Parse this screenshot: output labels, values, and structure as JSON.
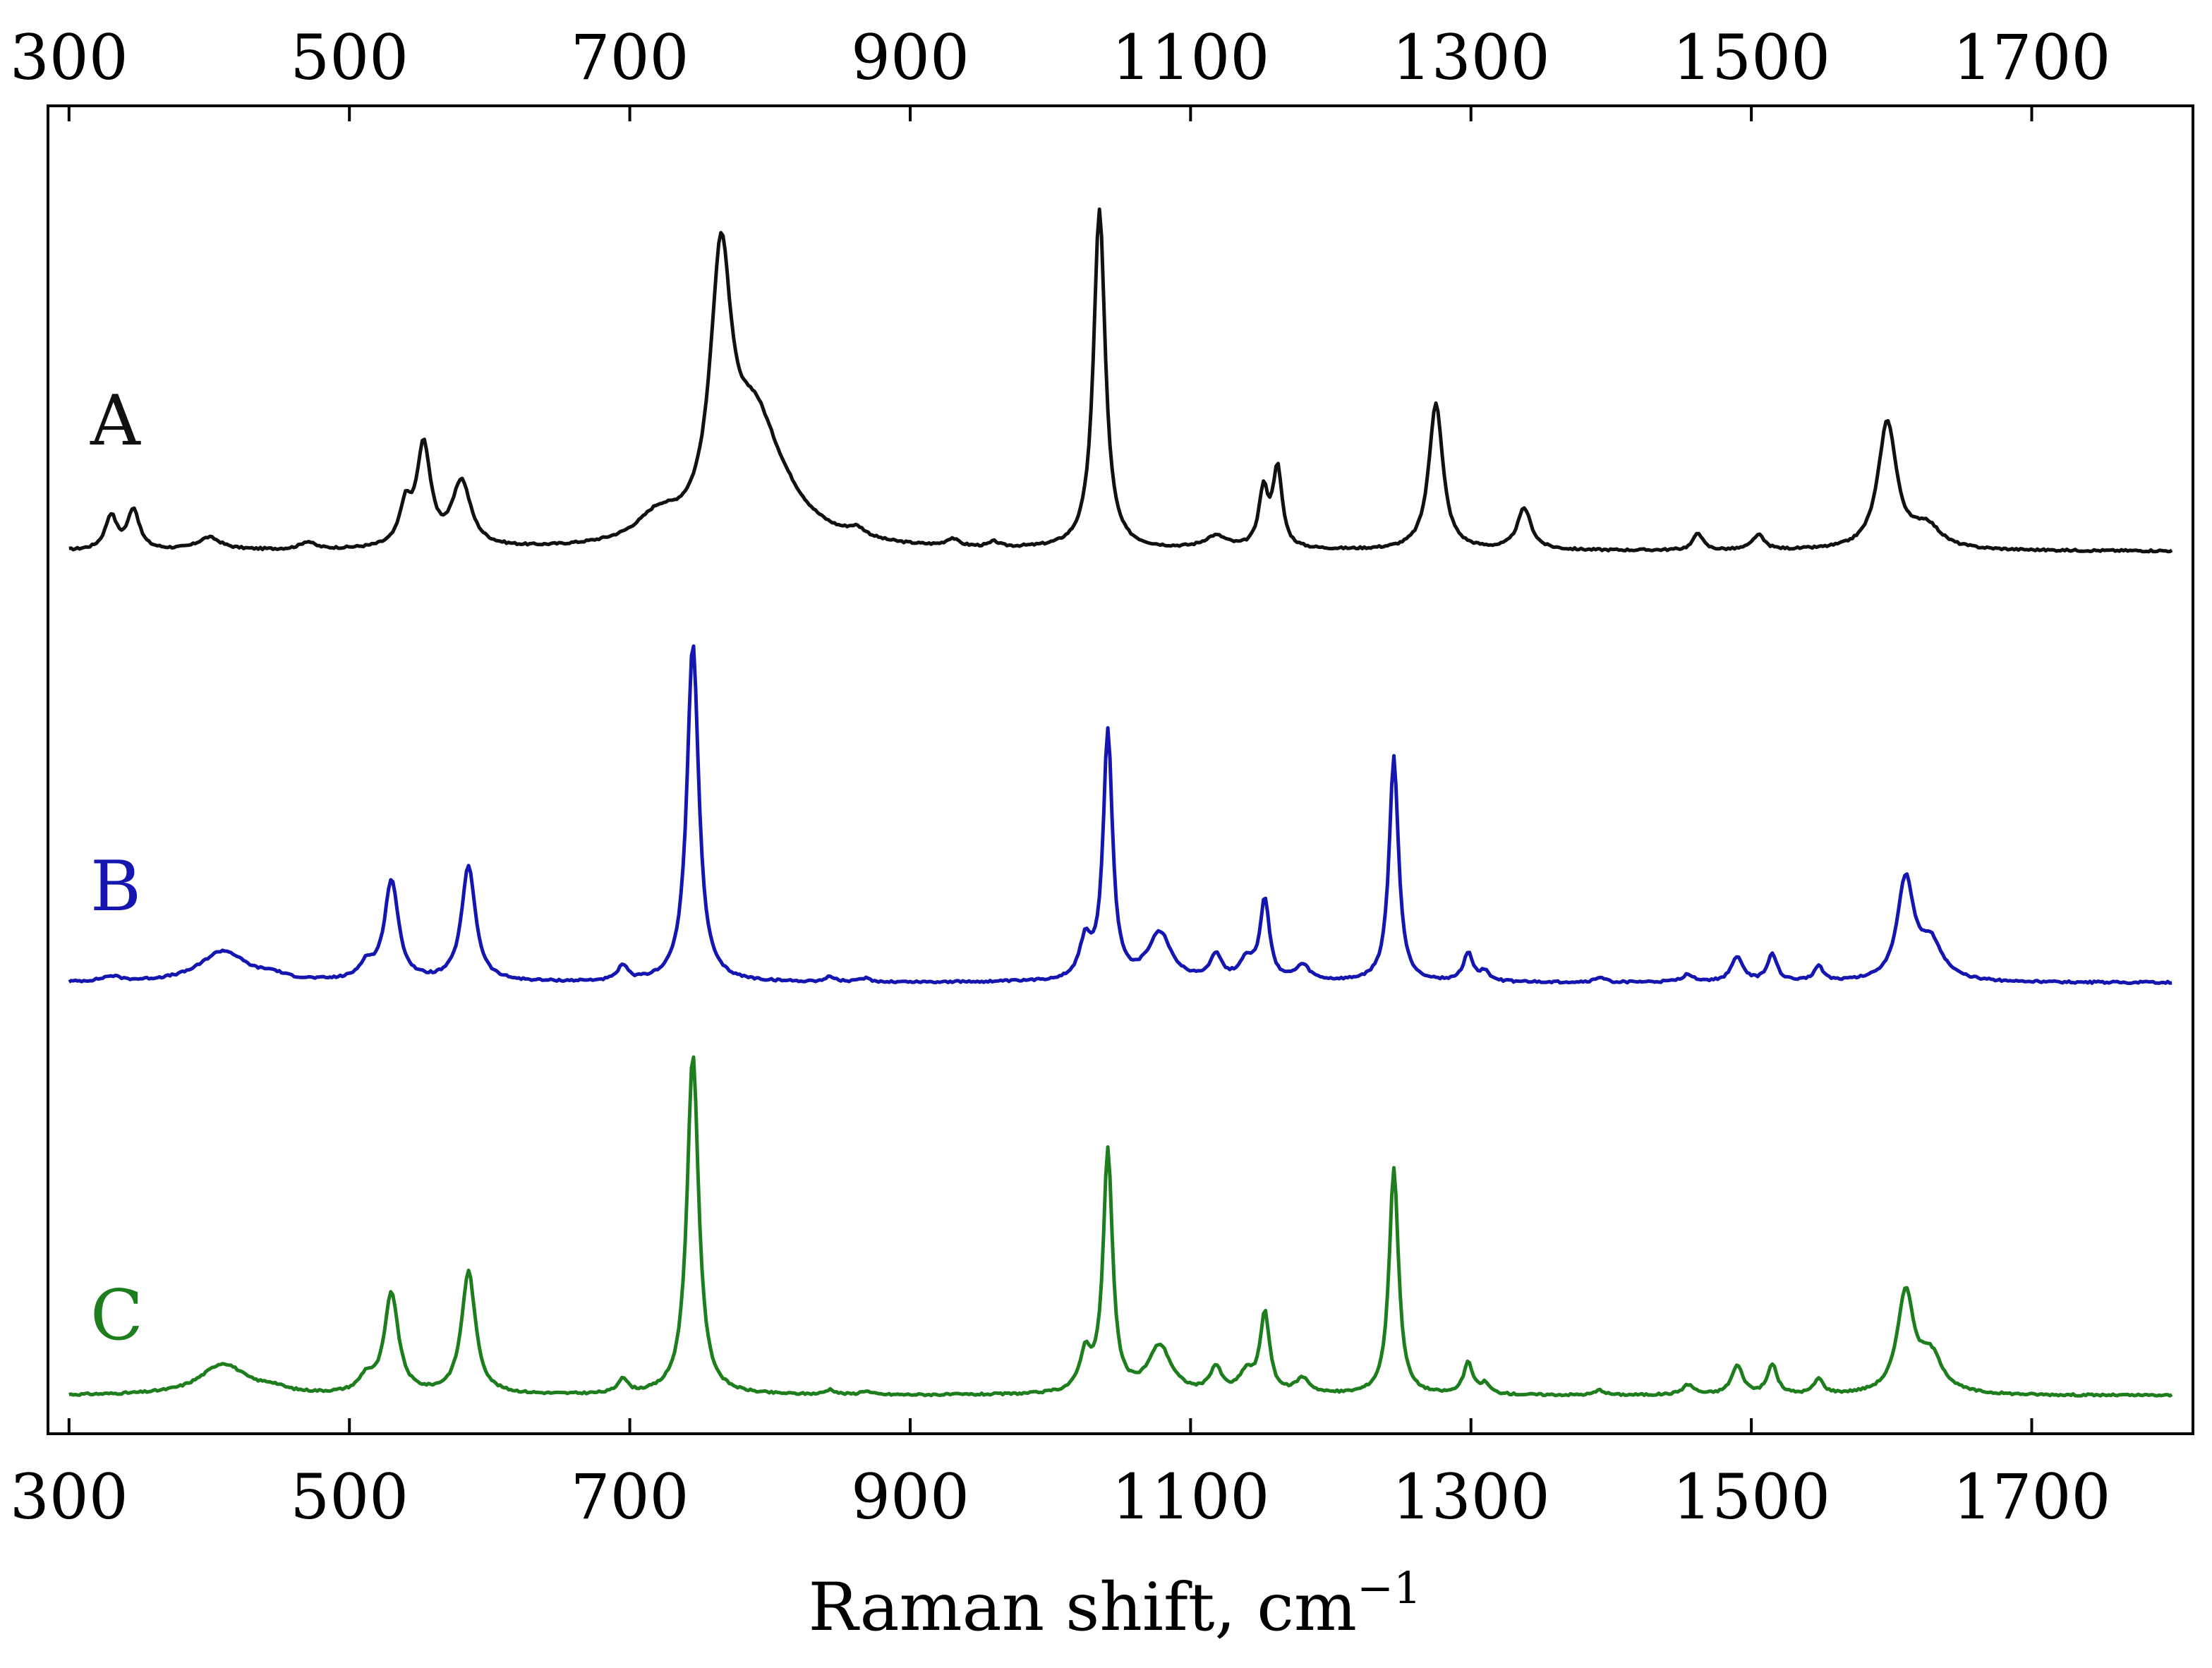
{
  "chart_data": {
    "type": "line",
    "title": "",
    "xlabel": "Raman shift, cm",
    "xlabel_superscript": "−1",
    "ylabel": "",
    "xlim": [
      285,
      1815
    ],
    "ylim": [
      0,
      1
    ],
    "grid": false,
    "legend": "none",
    "x_ticks": [
      300,
      500,
      700,
      900,
      1100,
      1300,
      1500,
      1700
    ],
    "x_tick_labels": [
      "300",
      "500",
      "700",
      "900",
      "1100",
      "1300",
      "1500",
      "1700"
    ],
    "top_tick_labels": [
      "300",
      "500",
      "700",
      "900",
      "1100",
      "1300",
      "1500",
      "1700"
    ],
    "series": [
      {
        "label": "A",
        "color": "#111111",
        "baseline": 0.675,
        "peaks": [
          [
            330,
            0.027,
            5
          ],
          [
            346,
            0.032,
            5
          ],
          [
            400,
            0.01,
            10
          ],
          [
            470,
            0.006,
            6
          ],
          [
            540,
            0.03,
            5
          ],
          [
            553,
            0.08,
            6
          ],
          [
            580,
            0.052,
            8
          ],
          [
            720,
            0.02,
            18
          ],
          [
            765,
            0.21,
            9
          ],
          [
            788,
            0.065,
            18
          ],
          [
            800,
            0.04,
            30
          ],
          [
            862,
            0.007,
            8
          ],
          [
            930,
            0.006,
            5
          ],
          [
            960,
            0.004,
            4
          ],
          [
            1035,
            0.272,
            5
          ],
          [
            1118,
            0.01,
            10
          ],
          [
            1152,
            0.045,
            4
          ],
          [
            1162,
            0.063,
            4
          ],
          [
            1275,
            0.118,
            6
          ],
          [
            1338,
            0.033,
            6
          ],
          [
            1462,
            0.014,
            4
          ],
          [
            1505,
            0.012,
            5
          ],
          [
            1597,
            0.102,
            8
          ],
          [
            1625,
            0.018,
            12
          ]
        ]
      },
      {
        "label": "B",
        "color": "#1515b0",
        "baseline": 0.33,
        "peaks": [
          [
            330,
            0.004,
            8
          ],
          [
            410,
            0.025,
            20
          ],
          [
            445,
            0.004,
            10
          ],
          [
            512,
            0.012,
            6
          ],
          [
            530,
            0.08,
            6
          ],
          [
            585,
            0.092,
            6
          ],
          [
            695,
            0.012,
            4
          ],
          [
            745,
            0.272,
            5
          ],
          [
            843,
            0.004,
            4
          ],
          [
            868,
            0.003,
            4
          ],
          [
            1025,
            0.03,
            5
          ],
          [
            1041,
            0.198,
            4
          ],
          [
            1078,
            0.038,
            10
          ],
          [
            1118,
            0.02,
            5
          ],
          [
            1140,
            0.016,
            6
          ],
          [
            1153,
            0.064,
            4
          ],
          [
            1180,
            0.012,
            6
          ],
          [
            1245,
            0.18,
            4
          ],
          [
            1298,
            0.023,
            4
          ],
          [
            1310,
            0.008,
            4
          ],
          [
            1392,
            0.004,
            4
          ],
          [
            1455,
            0.006,
            5
          ],
          [
            1490,
            0.02,
            5
          ],
          [
            1515,
            0.022,
            4
          ],
          [
            1548,
            0.012,
            4
          ],
          [
            1610,
            0.08,
            7
          ],
          [
            1628,
            0.03,
            10
          ]
        ]
      },
      {
        "label": "C",
        "color": "#1e7e1e",
        "baseline": 0.0,
        "peaks": [
          [
            410,
            0.025,
            20
          ],
          [
            445,
            0.004,
            10
          ],
          [
            512,
            0.012,
            6
          ],
          [
            530,
            0.08,
            6
          ],
          [
            585,
            0.098,
            6
          ],
          [
            695,
            0.012,
            4
          ],
          [
            745,
            0.272,
            5
          ],
          [
            843,
            0.004,
            4
          ],
          [
            868,
            0.003,
            4
          ],
          [
            1025,
            0.03,
            5
          ],
          [
            1041,
            0.193,
            4
          ],
          [
            1078,
            0.038,
            10
          ],
          [
            1118,
            0.02,
            5
          ],
          [
            1140,
            0.016,
            6
          ],
          [
            1153,
            0.064,
            4
          ],
          [
            1180,
            0.012,
            6
          ],
          [
            1245,
            0.182,
            4
          ],
          [
            1298,
            0.025,
            4
          ],
          [
            1310,
            0.008,
            4
          ],
          [
            1392,
            0.004,
            4
          ],
          [
            1455,
            0.008,
            5
          ],
          [
            1490,
            0.023,
            5
          ],
          [
            1515,
            0.024,
            4
          ],
          [
            1548,
            0.012,
            4
          ],
          [
            1610,
            0.08,
            7
          ],
          [
            1628,
            0.03,
            10
          ]
        ]
      }
    ]
  }
}
